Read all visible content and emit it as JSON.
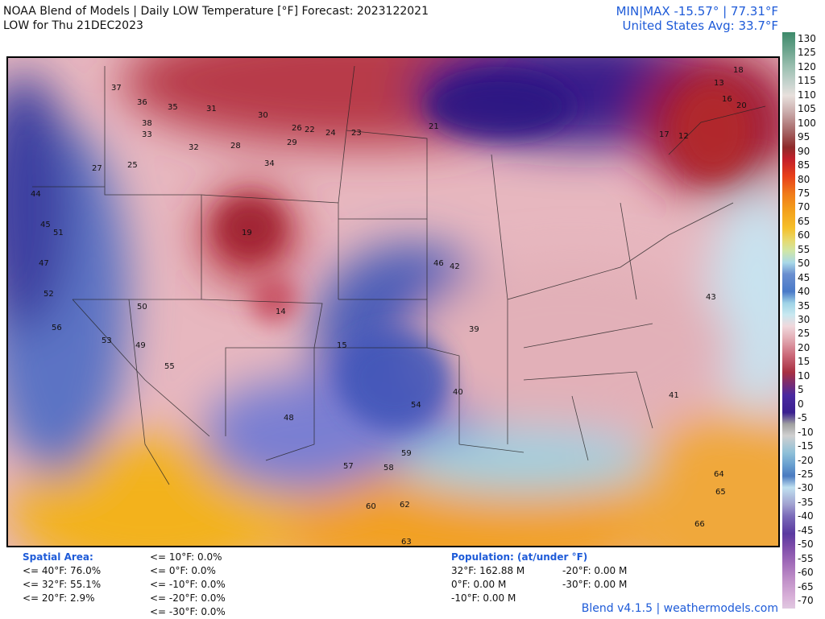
{
  "header": {
    "title_line1": "NOAA Blend of Models | Daily LOW Temperature [°F] Forecast: 2023122021",
    "title_line2": "LOW for Thu 21DEC2023",
    "minmax": "MIN|MAX -15.57°  |  77.31°F",
    "avg": "United States Avg: 33.7°F"
  },
  "legend": {
    "ticks": [
      "130",
      "125",
      "120",
      "115",
      "110",
      "105",
      "100",
      "95",
      "90",
      "85",
      "80",
      "75",
      "70",
      "65",
      "60",
      "55",
      "50",
      "45",
      "40",
      "35",
      "30",
      "25",
      "20",
      "15",
      "10",
      "5",
      "0",
      "-5",
      "-10",
      "-15",
      "-20",
      "-25",
      "-30",
      "-35",
      "-40",
      "-45",
      "-50",
      "-55",
      "-60",
      "-65",
      "-70"
    ]
  },
  "spatial_area": {
    "title": "Spatial Area:",
    "left": [
      "<= 40°F: 76.0%",
      "<= 32°F: 55.1%",
      "<= 20°F: 2.9%"
    ],
    "right": [
      "<= 10°F: 0.0%",
      "<= 0°F: 0.0%",
      "<= -10°F: 0.0%",
      "<= -20°F: 0.0%",
      "<= -30°F: 0.0%"
    ]
  },
  "population": {
    "title": "Population: (at/under °F)",
    "left": [
      "32°F: 162.88 M",
      "0°F: 0.00 M",
      "-10°F: 0.00 M"
    ],
    "right": [
      "-20°F: 0.00 M",
      "-30°F: 0.00 M"
    ]
  },
  "footer": "Blend v4.1.5 | weathermodels.com",
  "map_labels": [
    "37",
    "36",
    "35",
    "31",
    "30",
    "26",
    "22",
    "24",
    "23",
    "21",
    "17",
    "18",
    "13",
    "16",
    "20",
    "38",
    "33",
    "29",
    "28",
    "27",
    "25",
    "19",
    "34",
    "32",
    "46",
    "44",
    "45",
    "50",
    "51",
    "47",
    "52",
    "56",
    "53",
    "55",
    "49",
    "54",
    "48",
    "57",
    "58",
    "59",
    "60",
    "62",
    "63",
    "64",
    "65",
    "66",
    "43",
    "42",
    "41",
    "40",
    "39",
    "12",
    "14",
    "15"
  ],
  "colors": {
    "title_blue": "#1e5bd8",
    "warm_red": "#c0485a",
    "cold_purple": "#3a2a9a",
    "gulf_orange": "#f29a1e",
    "mild_blue": "#5f86c8"
  }
}
